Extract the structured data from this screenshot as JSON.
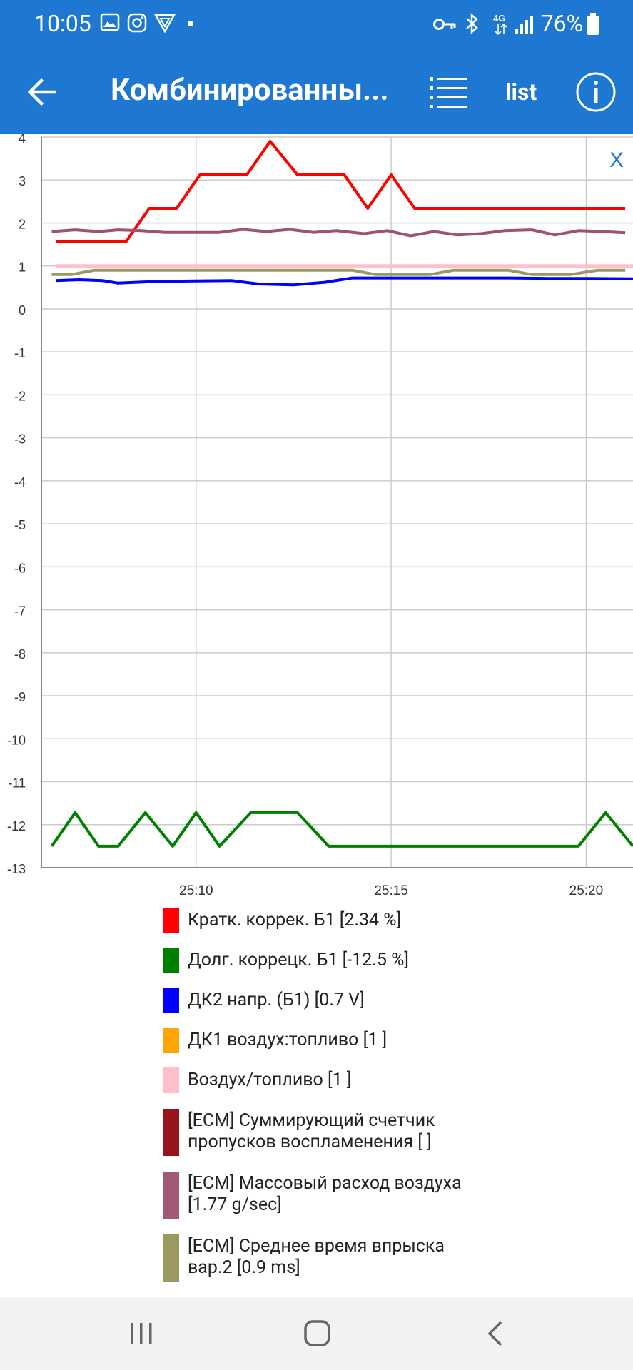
{
  "status_bar": {
    "time": "10:05",
    "battery": "76%",
    "network": "4G",
    "icons": [
      "image-icon",
      "instagram-icon",
      "vpn-shield-icon",
      "dot-icon",
      "key-icon",
      "bluetooth-icon",
      "network-4g-icon",
      "signal-icon",
      "battery-icon"
    ]
  },
  "app_bar": {
    "title": "Комбинированны...",
    "list_label": "list",
    "icons": [
      "back-arrow-icon",
      "list-view-icon",
      "info-icon"
    ]
  },
  "chart_close": "X",
  "chart_data": {
    "type": "line",
    "ylim": [
      -13,
      4
    ],
    "yticks": [
      "4",
      "3",
      "2",
      "1",
      "0",
      "-1",
      "-2",
      "-3",
      "-4",
      "-5",
      "-6",
      "-7",
      "-8",
      "-9",
      "-10",
      "-11",
      "-12",
      "-13"
    ],
    "xlabels": [
      "25:10",
      "25:15",
      "25:20"
    ],
    "xlabel_positions": [
      25.1,
      25.15,
      25.2
    ],
    "grid": true,
    "series": [
      {
        "name": "Кратк. коррек. Б1",
        "color": "#ff0000",
        "points": [
          [
            25.064,
            1.56
          ],
          [
            25.082,
            1.56
          ],
          [
            25.088,
            2.34
          ],
          [
            25.095,
            2.34
          ],
          [
            25.101,
            3.12
          ],
          [
            25.107,
            3.12
          ],
          [
            25.113,
            3.12
          ],
          [
            25.119,
            3.9
          ],
          [
            25.126,
            3.12
          ],
          [
            25.131,
            3.12
          ],
          [
            25.138,
            3.12
          ],
          [
            25.144,
            2.34
          ],
          [
            25.15,
            3.12
          ],
          [
            25.156,
            2.34
          ],
          [
            25.2,
            2.34
          ],
          [
            25.21,
            2.34
          ]
        ]
      },
      {
        "name": "Долг. коррецк. Б1",
        "color": "#008000",
        "points": [
          [
            25.063,
            -12.5
          ],
          [
            25.069,
            -11.72
          ],
          [
            25.075,
            -12.5
          ],
          [
            25.08,
            -12.5
          ],
          [
            25.087,
            -11.72
          ],
          [
            25.094,
            -12.5
          ],
          [
            25.1,
            -11.72
          ],
          [
            25.106,
            -12.5
          ],
          [
            25.114,
            -11.72
          ],
          [
            25.126,
            -11.72
          ],
          [
            25.134,
            -12.5
          ],
          [
            25.153,
            -12.5
          ],
          [
            25.172,
            -12.5
          ],
          [
            25.191,
            -12.5
          ],
          [
            25.198,
            -12.5
          ],
          [
            25.205,
            -11.72
          ],
          [
            25.212,
            -12.5
          ]
        ]
      },
      {
        "name": "ДК2 напр. (Б1)",
        "color": "#0000ff",
        "points": [
          [
            25.064,
            0.66
          ],
          [
            25.07,
            0.68
          ],
          [
            25.076,
            0.66
          ],
          [
            25.08,
            0.6
          ],
          [
            25.09,
            0.64
          ],
          [
            25.1,
            0.65
          ],
          [
            25.109,
            0.66
          ],
          [
            25.116,
            0.58
          ],
          [
            25.125,
            0.56
          ],
          [
            25.133,
            0.62
          ],
          [
            25.14,
            0.72
          ],
          [
            25.15,
            0.72
          ],
          [
            25.16,
            0.72
          ],
          [
            25.17,
            0.72
          ],
          [
            25.18,
            0.72
          ],
          [
            25.19,
            0.71
          ],
          [
            25.2,
            0.71
          ],
          [
            25.212,
            0.7
          ]
        ]
      },
      {
        "name": "ДК1 воздух:топливо",
        "color": "#ffa500",
        "points": [
          [
            25.064,
            1.0
          ],
          [
            25.212,
            1.0
          ]
        ]
      },
      {
        "name": "Воздух/топливо",
        "color": "#ffc0cb",
        "points": [
          [
            25.064,
            1.0
          ],
          [
            25.212,
            1.0
          ]
        ]
      },
      {
        "name": "[ECM] Суммирующий счетчик пропусков воспламенения",
        "color": "#990000",
        "points": []
      },
      {
        "name": "[ECM] Массовый расход воздуха",
        "color": "#a05070",
        "points": [
          [
            25.063,
            1.8
          ],
          [
            25.069,
            1.84
          ],
          [
            25.075,
            1.8
          ],
          [
            25.08,
            1.84
          ],
          [
            25.086,
            1.82
          ],
          [
            25.092,
            1.78
          ],
          [
            25.098,
            1.78
          ],
          [
            25.106,
            1.78
          ],
          [
            25.112,
            1.85
          ],
          [
            25.118,
            1.8
          ],
          [
            25.124,
            1.85
          ],
          [
            25.13,
            1.78
          ],
          [
            25.136,
            1.82
          ],
          [
            25.143,
            1.75
          ],
          [
            25.149,
            1.82
          ],
          [
            25.155,
            1.7
          ],
          [
            25.161,
            1.8
          ],
          [
            25.167,
            1.72
          ],
          [
            25.173,
            1.75
          ],
          [
            25.179,
            1.82
          ],
          [
            25.186,
            1.84
          ],
          [
            25.192,
            1.72
          ],
          [
            25.198,
            1.82
          ],
          [
            25.204,
            1.8
          ],
          [
            25.21,
            1.77
          ]
        ]
      },
      {
        "name": "[ECM] Среднее время впрыска вар.2",
        "color": "#999966",
        "points": [
          [
            25.063,
            0.8
          ],
          [
            25.068,
            0.8
          ],
          [
            25.074,
            0.9
          ],
          [
            25.1,
            0.9
          ],
          [
            25.14,
            0.9
          ],
          [
            25.146,
            0.8
          ],
          [
            25.16,
            0.8
          ],
          [
            25.166,
            0.9
          ],
          [
            25.18,
            0.9
          ],
          [
            25.186,
            0.8
          ],
          [
            25.196,
            0.8
          ],
          [
            25.203,
            0.9
          ],
          [
            25.21,
            0.9
          ]
        ]
      }
    ]
  },
  "legend": [
    {
      "color": "#ff0000",
      "label": "Кратк. коррек. Б1 [2.34 %]"
    },
    {
      "color": "#008000",
      "label": "Долг. коррецк. Б1 [-12.5 %]"
    },
    {
      "color": "#0000ff",
      "label": "ДК2 напр. (Б1) [0.7 V]"
    },
    {
      "color": "#ffa500",
      "label": "ДК1 воздух:топливо [1 ]"
    },
    {
      "color": "#ffc0cb",
      "label": "Воздух/топливо [1 ]"
    },
    {
      "color": "#99141a",
      "label": "[ECM] Суммирующий счетчик пропусков воспламенения [ ]"
    },
    {
      "color": "#a05a78",
      "label": "[ECM] Массовый расход воздуха [1.77 g/sec]"
    },
    {
      "color": "#999960",
      "label": "[ECM] Среднее время впрыска вар.2 [0.9 ms]"
    }
  ],
  "nav_bar": {
    "icons": [
      "recent-apps-icon",
      "home-icon",
      "back-icon"
    ]
  }
}
